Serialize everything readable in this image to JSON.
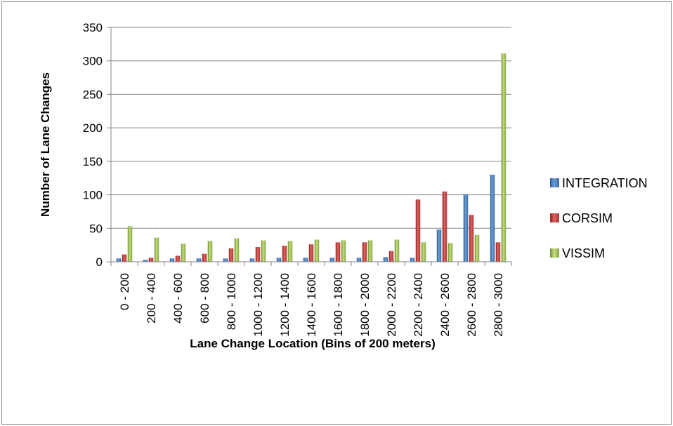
{
  "chart_data": {
    "type": "bar",
    "title": "",
    "xlabel": "Lane Change Location (Bins of 200 meters)",
    "ylabel": "Number of Lane Changes",
    "ylim": [
      0,
      350
    ],
    "yticks": [
      0,
      50,
      100,
      150,
      200,
      250,
      300,
      350
    ],
    "grid": true,
    "legend_position": "right",
    "categories": [
      "0 - 200",
      "200 - 400",
      "400 - 600",
      "600 - 800",
      "800 - 1000",
      "1000 - 1200",
      "1200 - 1400",
      "1400 - 1600",
      "1600 - 1800",
      "1800 - 2000",
      "2000 - 2200",
      "2200 - 2400",
      "2400 - 2600",
      "2600 - 2800",
      "2800 - 3000"
    ],
    "series": [
      {
        "name": "INTEGRATION",
        "color": "#4f81bd",
        "values": [
          5,
          3,
          5,
          5,
          5,
          5,
          6,
          6,
          6,
          6,
          7,
          6,
          48,
          101,
          130
        ]
      },
      {
        "name": "CORSIM",
        "color": "#c0504d",
        "values": [
          11,
          6,
          9,
          12,
          20,
          22,
          24,
          26,
          29,
          29,
          16,
          93,
          105,
          70,
          29
        ]
      },
      {
        "name": "VISSIM",
        "color": "#9bbb59",
        "values": [
          53,
          36,
          27,
          31,
          35,
          32,
          31,
          33,
          32,
          32,
          33,
          29,
          28,
          40,
          311
        ]
      }
    ]
  }
}
